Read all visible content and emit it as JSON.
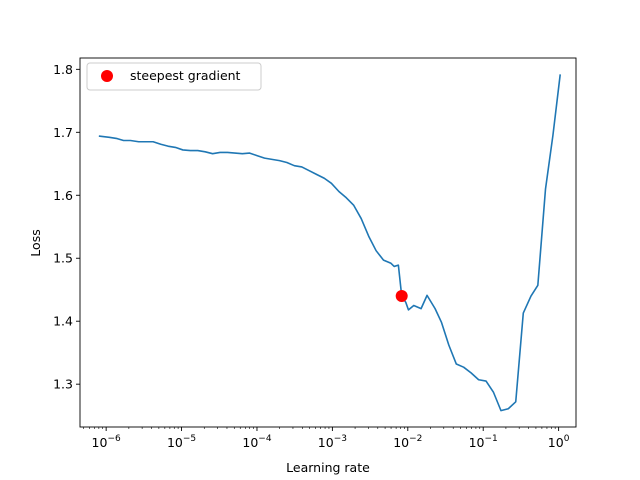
{
  "chart_data": {
    "type": "line",
    "title": "",
    "xlabel": "Learning rate",
    "ylabel": "Loss",
    "xscale": "log",
    "xlim": [
      4.5e-07,
      1.7
    ],
    "ylim": [
      1.232,
      1.818
    ],
    "x_ticks": [
      {
        "value": 1e-06,
        "base": "10",
        "exp": "−6"
      },
      {
        "value": 1e-05,
        "base": "10",
        "exp": "−5"
      },
      {
        "value": 0.0001,
        "base": "10",
        "exp": "−4"
      },
      {
        "value": 0.001,
        "base": "10",
        "exp": "−3"
      },
      {
        "value": 0.01,
        "base": "10",
        "exp": "−2"
      },
      {
        "value": 0.1,
        "base": "10",
        "exp": "−1"
      },
      {
        "value": 1,
        "base": "10",
        "exp": "0"
      }
    ],
    "y_ticks": [
      {
        "value": 1.3,
        "label": "1.3"
      },
      {
        "value": 1.4,
        "label": "1.4"
      },
      {
        "value": 1.5,
        "label": "1.5"
      },
      {
        "value": 1.6,
        "label": "1.6"
      },
      {
        "value": 1.7,
        "label": "1.7"
      },
      {
        "value": 1.8,
        "label": "1.8"
      }
    ],
    "grid": false,
    "legend_position": "top-left",
    "series_color": "#1f77b4",
    "marker_color": "#ff0000",
    "series": [
      {
        "points": [
          [
            8e-07,
            1.694
          ],
          [
            1.1e-06,
            1.692
          ],
          [
            1.4e-06,
            1.69
          ],
          [
            1.7e-06,
            1.687
          ],
          [
            2.1e-06,
            1.687
          ],
          [
            2.7e-06,
            1.685
          ],
          [
            3.4e-06,
            1.685
          ],
          [
            4.2e-06,
            1.685
          ],
          [
            5.3e-06,
            1.681
          ],
          [
            6.6e-06,
            1.678
          ],
          [
            8.3e-06,
            1.676
          ],
          [
            1.04e-05,
            1.672
          ],
          [
            1.31e-05,
            1.671
          ],
          [
            1.64e-05,
            1.671
          ],
          [
            2.06e-05,
            1.669
          ],
          [
            2.58e-05,
            1.666
          ],
          [
            3.24e-05,
            1.668
          ],
          [
            4.07e-05,
            1.668
          ],
          [
            5.1e-05,
            1.667
          ],
          [
            6.4e-05,
            1.666
          ],
          [
            8e-05,
            1.667
          ],
          [
            0.0001,
            1.663
          ],
          [
            0.000126,
            1.659
          ],
          [
            0.000158,
            1.657
          ],
          [
            0.000199,
            1.655
          ],
          [
            0.000249,
            1.652
          ],
          [
            0.000313,
            1.647
          ],
          [
            0.000393,
            1.645
          ],
          [
            0.000493,
            1.639
          ],
          [
            0.00062,
            1.633
          ],
          [
            0.00078,
            1.627
          ],
          [
            0.00097,
            1.619
          ],
          [
            0.00122,
            1.606
          ],
          [
            0.00153,
            1.596
          ],
          [
            0.00192,
            1.584
          ],
          [
            0.00241,
            1.563
          ],
          [
            0.00303,
            1.535
          ],
          [
            0.0038,
            1.512
          ],
          [
            0.00476,
            1.497
          ],
          [
            0.00598,
            1.492
          ],
          [
            0.0066,
            1.487
          ],
          [
            0.0075,
            1.489
          ],
          [
            0.0083,
            1.44
          ],
          [
            0.0094,
            1.43
          ],
          [
            0.0102,
            1.418
          ],
          [
            0.012,
            1.425
          ],
          [
            0.015,
            1.42
          ],
          [
            0.018,
            1.441
          ],
          [
            0.023,
            1.42
          ],
          [
            0.028,
            1.398
          ],
          [
            0.035,
            1.362
          ],
          [
            0.044,
            1.332
          ],
          [
            0.055,
            1.327
          ],
          [
            0.069,
            1.318
          ],
          [
            0.087,
            1.307
          ],
          [
            0.109,
            1.305
          ],
          [
            0.137,
            1.287
          ],
          [
            0.172,
            1.258
          ],
          [
            0.215,
            1.261
          ],
          [
            0.27,
            1.272
          ],
          [
            0.34,
            1.413
          ],
          [
            0.43,
            1.44
          ],
          [
            0.53,
            1.457
          ],
          [
            0.67,
            1.61
          ],
          [
            0.84,
            1.695
          ],
          [
            1.05,
            1.792
          ]
        ]
      }
    ],
    "steepest_gradient": {
      "label": "steepest gradient",
      "x": 0.0083,
      "y": 1.44
    }
  }
}
